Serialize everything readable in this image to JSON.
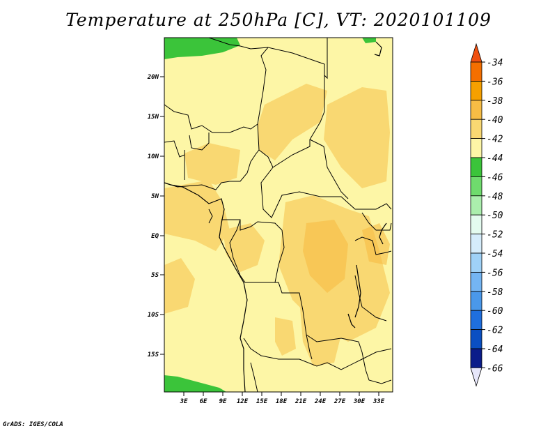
{
  "title": "Temperature at 250hPa [C], VT: 2020101109",
  "credit": "GrADS: IGES/COLA",
  "map": {
    "lat_labels": [
      "20N",
      "15N",
      "10N",
      "5N",
      "EQ",
      "5S",
      "10S",
      "15S"
    ],
    "lon_labels": [
      "3E",
      "6E",
      "9E",
      "12E",
      "15E",
      "18E",
      "21E",
      "24E",
      "27E",
      "30E",
      "33E"
    ]
  },
  "colorbar": {
    "labels": [
      "-34",
      "-36",
      "-38",
      "-40",
      "-42",
      "-44",
      "-46",
      "-48",
      "-50",
      "-52",
      "-54",
      "-56",
      "-58",
      "-60",
      "-62",
      "-64",
      "-66"
    ],
    "colors": [
      "#f05010",
      "#f46f00",
      "#f6a000",
      "#f7bd45",
      "#f9d872",
      "#fdf6a6",
      "#3bc43a",
      "#6fdb6d",
      "#abeead",
      "#e4fbef",
      "#d5ecfb",
      "#9fd1f7",
      "#74b5f3",
      "#4a98ea",
      "#1f6fde",
      "#0a4fc2",
      "#0b1c8a",
      "#e6e6fa"
    ]
  }
}
